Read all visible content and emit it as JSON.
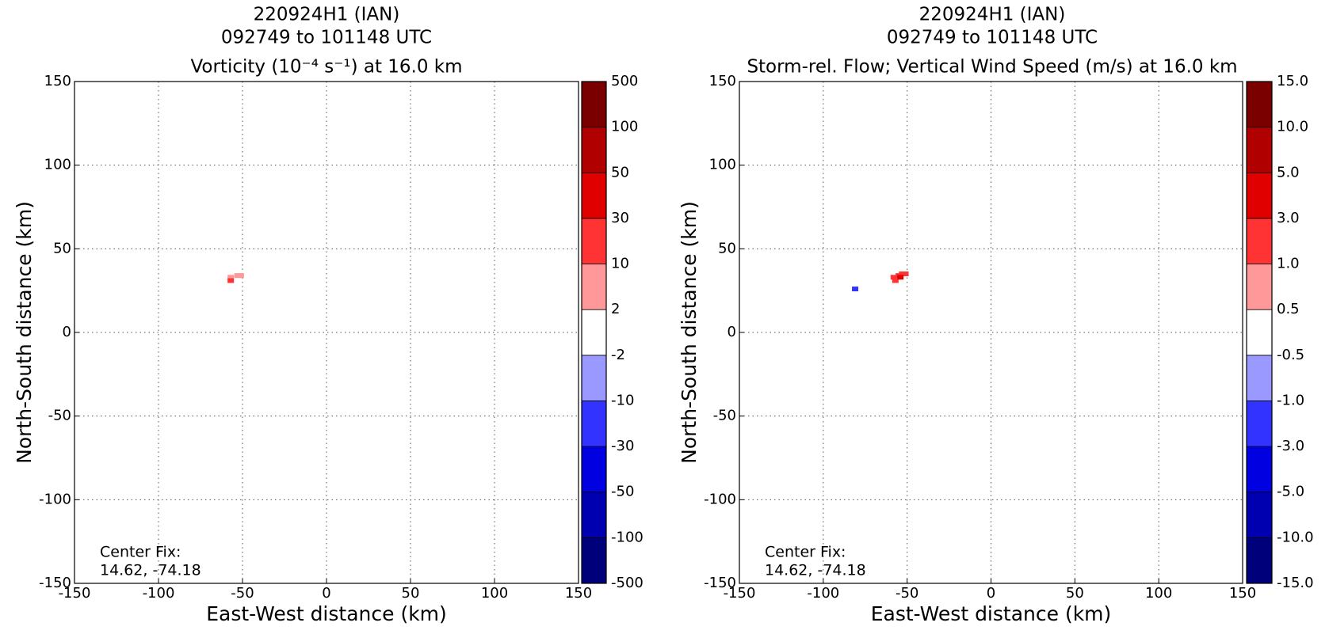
{
  "chart_data": [
    {
      "type": "contour",
      "title": [
        "220924H1 (IAN)",
        "092749 to 101148 UTC",
        "Vorticity (10⁻⁴ s⁻¹) at 16.0 km"
      ],
      "xlabel": "East-West distance (km)",
      "ylabel": "North-South distance (km)",
      "xlim": [
        -150,
        150
      ],
      "ylim": [
        -150,
        150
      ],
      "xticks": [
        -150,
        -100,
        -50,
        0,
        50,
        100,
        150
      ],
      "yticks": [
        -150,
        -100,
        -50,
        0,
        50,
        100,
        150
      ],
      "grid": true,
      "annotation": [
        "Center Fix:",
        "14.62, -74.18"
      ],
      "levels": [
        -500,
        -100,
        -50,
        -30,
        -10,
        -2,
        2,
        10,
        30,
        50,
        100,
        500
      ],
      "colors": [
        "#00007a",
        "#0000b0",
        "#0000e0",
        "#3333ff",
        "#9999ff",
        "#ffffff",
        "#ff9999",
        "#ff3333",
        "#e00000",
        "#b00000",
        "#7a0000"
      ],
      "cells": {
        "x": [
          -57,
          -53,
          -51,
          -57
        ],
        "y": [
          33,
          34,
          34,
          31
        ],
        "values": [
          5,
          5,
          5,
          15
        ]
      }
    },
    {
      "type": "contour",
      "title": [
        "220924H1 (IAN)",
        "092749 to 101148 UTC",
        "Storm-rel. Flow; Vertical Wind Speed (m/s) at 16.0 km"
      ],
      "xlabel": "East-West distance (km)",
      "ylabel": "North-South distance (km)",
      "xlim": [
        -150,
        150
      ],
      "ylim": [
        -150,
        150
      ],
      "xticks": [
        -150,
        -100,
        -50,
        0,
        50,
        100,
        150
      ],
      "yticks": [
        -150,
        -100,
        -50,
        0,
        50,
        100,
        150
      ],
      "grid": true,
      "annotation": [
        "Center Fix:",
        "14.62, -74.18"
      ],
      "levels": [
        {
          "value": -15,
          "label": "-15.0"
        },
        {
          "value": -10,
          "label": "-10.0"
        },
        {
          "value": -5,
          "label": "-5.0"
        },
        {
          "value": -3,
          "label": "-3.0"
        },
        {
          "value": -1,
          "label": "-1.0"
        },
        -0.5,
        0.5,
        {
          "value": 1,
          "label": "1.0"
        },
        {
          "value": 3,
          "label": "3.0"
        },
        {
          "value": 5,
          "label": "5.0"
        },
        {
          "value": 10,
          "label": "10.0"
        },
        {
          "value": 15,
          "label": "15.0"
        }
      ],
      "colors": [
        "#00007a",
        "#0000b0",
        "#0000e0",
        "#3333ff",
        "#9999ff",
        "#ffffff",
        "#ff9999",
        "#ff3333",
        "#e00000",
        "#b00000",
        "#7a0000"
      ],
      "cells": {
        "x": [
          -58,
          -55,
          -53,
          -51,
          -57,
          -54,
          -81
        ],
        "y": [
          33,
          34,
          35,
          35,
          31,
          33,
          26
        ],
        "values": [
          2,
          2,
          2,
          2,
          2,
          4,
          -2
        ]
      }
    }
  ]
}
